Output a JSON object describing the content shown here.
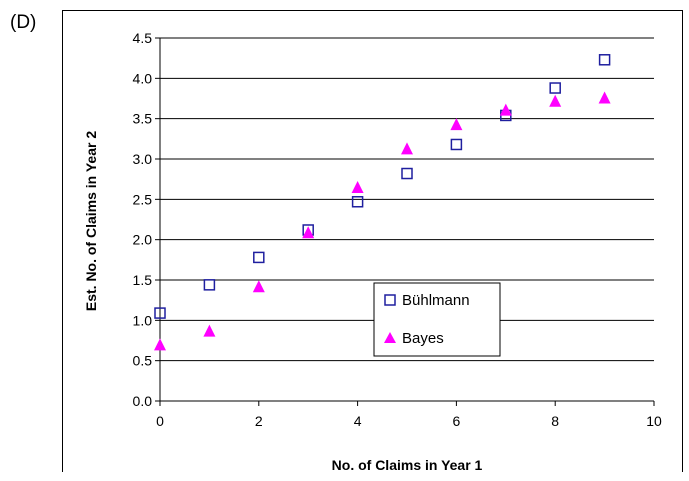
{
  "panel_label": "(D)",
  "colors": {
    "buhlmann": "#1f1f9f",
    "bayes": "#ff00ff",
    "grid": "#000000"
  },
  "chart_data": {
    "type": "scatter",
    "title": "",
    "xlabel": "No. of Claims in Year 1",
    "ylabel": "Est. No. of Claims in Year 2",
    "xlim": [
      0,
      10
    ],
    "ylim": [
      0,
      4.5
    ],
    "xticks": [
      0,
      2,
      4,
      6,
      8,
      10
    ],
    "xtick_labels": [
      "0",
      "2",
      "4",
      "6",
      "8",
      "10"
    ],
    "yticks": [
      0,
      0.5,
      1.0,
      1.5,
      2.0,
      2.5,
      3.0,
      3.5,
      4.0,
      4.5
    ],
    "ytick_labels": [
      "0.0",
      "0.5",
      "1.0",
      "1.5",
      "2.0",
      "2.5",
      "3.0",
      "3.5",
      "4.0",
      "4.5"
    ],
    "grid": "horizontal",
    "legend_position": "inside-lower-right",
    "series": [
      {
        "name": "Bühlmann",
        "marker": "square-open",
        "x": [
          0,
          1,
          2,
          3,
          4,
          5,
          6,
          7,
          8,
          9
        ],
        "y": [
          1.09,
          1.44,
          1.78,
          2.12,
          2.47,
          2.82,
          3.18,
          3.54,
          3.88,
          4.23
        ]
      },
      {
        "name": "Bayes",
        "marker": "triangle-filled",
        "x": [
          0,
          1,
          2,
          3,
          4,
          5,
          6,
          7,
          8,
          9
        ],
        "y": [
          0.69,
          0.86,
          1.41,
          2.08,
          2.64,
          3.12,
          3.42,
          3.6,
          3.71,
          3.75
        ]
      }
    ]
  }
}
